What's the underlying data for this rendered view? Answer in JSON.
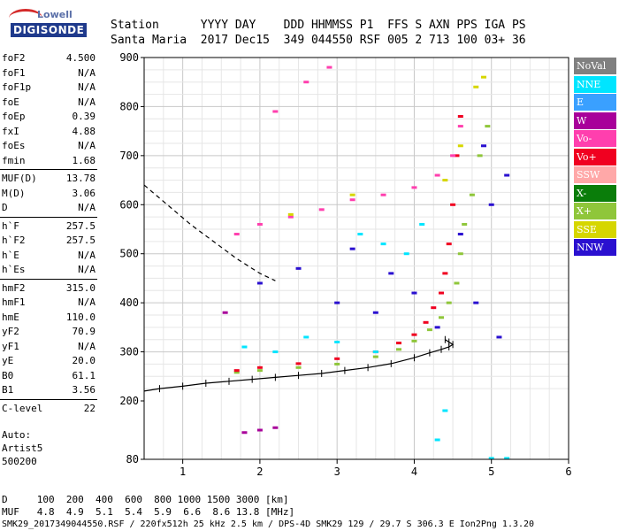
{
  "logo": {
    "line1": "Lowell",
    "line2": "DIGISONDE"
  },
  "header": {
    "labels_line": "Station      YYYY DAY    DDD HHMMSS P1  FFS S AXN PPS IGA PS",
    "values_line": "Santa Maria  2017 Dec15  349 044550 RSF 005 2 713 100 03+ 36"
  },
  "params": [
    [
      {
        "label": "foF2",
        "value": "4.500"
      },
      {
        "label": "foF1",
        "value": "N/A"
      },
      {
        "label": "foF1p",
        "value": "N/A"
      },
      {
        "label": "foE",
        "value": "N/A"
      },
      {
        "label": "foEp",
        "value": "0.39"
      },
      {
        "label": "fxI",
        "value": "4.88"
      },
      {
        "label": "foEs",
        "value": "N/A"
      },
      {
        "label": "fmin",
        "value": "1.68"
      }
    ],
    [
      {
        "label": "MUF(D)",
        "value": "13.78"
      },
      {
        "label": "M(D)",
        "value": "3.06"
      },
      {
        "label": "D",
        "value": "N/A"
      }
    ],
    [
      {
        "label": "h`F",
        "value": "257.5"
      },
      {
        "label": "h`F2",
        "value": "257.5"
      },
      {
        "label": "h`E",
        "value": "N/A"
      },
      {
        "label": "h`Es",
        "value": "N/A"
      }
    ],
    [
      {
        "label": "hmF2",
        "value": "315.0"
      },
      {
        "label": "hmF1",
        "value": "N/A"
      },
      {
        "label": "hmE",
        "value": "110.0"
      },
      {
        "label": "yF2",
        "value": "70.9"
      },
      {
        "label": "yF1",
        "value": "N/A"
      },
      {
        "label": "yE",
        "value": "20.0"
      },
      {
        "label": "B0",
        "value": "61.1"
      },
      {
        "label": "B1",
        "value": "3.56"
      }
    ],
    [
      {
        "label": "C-level",
        "value": "22"
      }
    ]
  ],
  "auto": {
    "line1": "Auto:",
    "line2": "Artist5",
    "line3": "500200"
  },
  "footer": {
    "d_line": "D     100  200  400  600  800 1000 1500 3000 [km]",
    "muf_line": "MUF   4.8  4.9  5.1  5.4  5.9  6.6  8.6 13.8 [MHz]",
    "file_line": "SMK29_2017349044550.RSF / 220fx512h 25 kHz 2.5 km / DPS-4D SMK29 129 / 29.7 S 306.3 E Ion2Png 1.3.20"
  },
  "legend": [
    {
      "label": "NoVal",
      "color": "#808080"
    },
    {
      "label": "NNE",
      "color": "#00e5ff"
    },
    {
      "label": "E",
      "color": "#3aa0ff"
    },
    {
      "label": "W",
      "color": "#a8009a"
    },
    {
      "label": "Vo-",
      "color": "#ff3fae"
    },
    {
      "label": "Vo+",
      "color": "#f00020"
    },
    {
      "label": "SSW",
      "color": "#ffa8a8"
    },
    {
      "label": "X-",
      "color": "#0a7d0a"
    },
    {
      "label": "X+",
      "color": "#8fc63a"
    },
    {
      "label": "SSE",
      "color": "#d6d600"
    },
    {
      "label": "NNW",
      "color": "#2a10d0"
    }
  ],
  "chart_data": {
    "type": "scatter",
    "xlim": [
      0.5,
      6
    ],
    "ylim": [
      80,
      900
    ],
    "x_ticks": [
      1,
      2,
      3,
      4,
      5,
      6
    ],
    "y_ticks": [
      80,
      200,
      300,
      400,
      500,
      600,
      700,
      800,
      900
    ],
    "grid": true,
    "series": [
      {
        "name": "X+",
        "points": [
          [
            1.7,
            258
          ],
          [
            2,
            262
          ],
          [
            2.5,
            268
          ],
          [
            3,
            275
          ],
          [
            3.5,
            290
          ],
          [
            3.8,
            305
          ],
          [
            4,
            322
          ],
          [
            4.2,
            345
          ],
          [
            4.35,
            370
          ],
          [
            4.45,
            400
          ],
          [
            4.55,
            440
          ],
          [
            4.6,
            500
          ],
          [
            4.65,
            560
          ],
          [
            4.75,
            620
          ],
          [
            4.85,
            700
          ],
          [
            4.95,
            760
          ]
        ]
      },
      {
        "name": "Vo+",
        "points": [
          [
            1.7,
            262
          ],
          [
            2,
            268
          ],
          [
            2.5,
            276
          ],
          [
            3,
            286
          ],
          [
            3.5,
            300
          ],
          [
            3.8,
            318
          ],
          [
            4,
            335
          ],
          [
            4.15,
            360
          ],
          [
            4.25,
            390
          ],
          [
            4.35,
            420
          ],
          [
            4.4,
            460
          ],
          [
            4.45,
            520
          ],
          [
            4.5,
            600
          ],
          [
            4.55,
            700
          ],
          [
            4.6,
            780
          ]
        ]
      },
      {
        "name": "NNW",
        "points": [
          [
            2,
            440
          ],
          [
            2.5,
            470
          ],
          [
            3,
            400
          ],
          [
            3.2,
            510
          ],
          [
            3.5,
            380
          ],
          [
            3.7,
            460
          ],
          [
            4,
            420
          ],
          [
            4.3,
            350
          ],
          [
            4.6,
            540
          ],
          [
            4.8,
            400
          ],
          [
            5,
            600
          ],
          [
            5.2,
            660
          ],
          [
            5.1,
            330
          ],
          [
            4.9,
            720
          ]
        ]
      },
      {
        "name": "NNE",
        "points": [
          [
            1.8,
            310
          ],
          [
            2.2,
            300
          ],
          [
            2.6,
            330
          ],
          [
            3,
            320
          ],
          [
            3.3,
            540
          ],
          [
            3.6,
            520
          ],
          [
            3.9,
            500
          ],
          [
            4.1,
            560
          ],
          [
            3.5,
            300
          ],
          [
            4.4,
            180
          ],
          [
            4.3,
            120
          ],
          [
            5,
            82
          ],
          [
            5.2,
            82
          ]
        ]
      },
      {
        "name": "Vo-",
        "points": [
          [
            1.7,
            540
          ],
          [
            2,
            560
          ],
          [
            2.4,
            575
          ],
          [
            2.8,
            590
          ],
          [
            3.2,
            610
          ],
          [
            3.6,
            620
          ],
          [
            4,
            635
          ],
          [
            4.3,
            660
          ],
          [
            4.5,
            700
          ],
          [
            4.6,
            760
          ],
          [
            2.2,
            790
          ],
          [
            2.6,
            850
          ],
          [
            2.9,
            880
          ]
        ]
      },
      {
        "name": "SSE",
        "points": [
          [
            2.4,
            580
          ],
          [
            3.2,
            620
          ],
          [
            4.4,
            650
          ],
          [
            4.6,
            720
          ],
          [
            4.8,
            840
          ],
          [
            4.9,
            860
          ]
        ]
      },
      {
        "name": "W",
        "points": [
          [
            1.8,
            135
          ],
          [
            2,
            140
          ],
          [
            2.2,
            145
          ],
          [
            1.55,
            380
          ]
        ]
      }
    ],
    "virtual_height_curve": {
      "name": "h'f trace",
      "x": [
        0.5,
        0.7,
        1,
        1.3,
        1.6,
        1.9,
        2.2,
        2.5,
        2.8,
        3.1,
        3.4,
        3.7,
        4,
        4.2,
        4.35,
        4.45,
        4.5,
        4.45,
        4.4
      ],
      "y": [
        220,
        225,
        230,
        236,
        240,
        244,
        248,
        252,
        256,
        262,
        268,
        276,
        288,
        298,
        305,
        310,
        315,
        320,
        325
      ]
    },
    "profile_curve": {
      "name": "dashed profile",
      "x": [
        0.5,
        0.8,
        1.1,
        1.4,
        1.7,
        2,
        2.2
      ],
      "y": [
        640,
        600,
        560,
        525,
        490,
        460,
        445
      ]
    }
  }
}
